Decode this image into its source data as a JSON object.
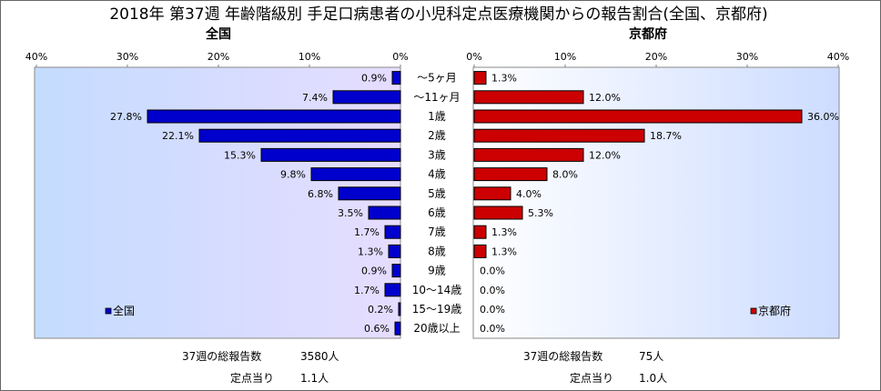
{
  "chart_data": {
    "type": "bar",
    "orientation": "horizontal",
    "title": "2018年 第37週 年齢階級別 手足口病患者の小児科定点医療機関からの報告割合(全国、京都府)",
    "categories": [
      "～5ヶ月",
      "～11ヶ月",
      "1歳",
      "2歳",
      "3歳",
      "4歳",
      "5歳",
      "6歳",
      "7歳",
      "8歳",
      "9歳",
      "10～14歳",
      "15～19歳",
      "20歳以上"
    ],
    "grid": false,
    "series": [
      {
        "name": "全国",
        "values": [
          0.9,
          7.4,
          27.8,
          22.1,
          15.3,
          9.8,
          6.8,
          3.5,
          1.7,
          1.3,
          0.9,
          1.7,
          0.2,
          0.6
        ],
        "labels": [
          "0.9%",
          "7.4%",
          "27.8%",
          "22.1%",
          "15.3%",
          "9.8%",
          "6.8%",
          "3.5%",
          "1.7%",
          "1.3%",
          "0.9%",
          "1.7%",
          "0.2%",
          "0.6%"
        ],
        "xlim": [
          0,
          40
        ],
        "x_ticks": [
          0,
          10,
          20,
          30,
          40
        ],
        "x_tick_labels": [
          "0%",
          "10%",
          "20%",
          "30%",
          "40%"
        ],
        "x_axis_reversed": true,
        "color": "#0000cc",
        "legend_position": "bottom-left"
      },
      {
        "name": "京都府",
        "values": [
          1.3,
          12.0,
          36.0,
          18.7,
          12.0,
          8.0,
          4.0,
          5.3,
          1.3,
          1.3,
          0.0,
          0.0,
          0.0,
          0.0
        ],
        "labels": [
          "1.3%",
          "12.0%",
          "36.0%",
          "18.7%",
          "12.0%",
          "8.0%",
          "4.0%",
          "5.3%",
          "1.3%",
          "1.3%",
          "0.0%",
          "0.0%",
          "0.0%",
          "0.0%"
        ],
        "xlim": [
          0,
          40
        ],
        "x_ticks": [
          0,
          10,
          20,
          30,
          40
        ],
        "x_tick_labels": [
          "0%",
          "10%",
          "20%",
          "30%",
          "40%"
        ],
        "x_axis_reversed": false,
        "color": "#cc0000",
        "legend_position": "bottom-right"
      }
    ]
  },
  "summary": [
    {
      "total_label": "37週の総報告数",
      "total_value": "3580人",
      "per_site_label": "定点当り",
      "per_site_value": "1.1人"
    },
    {
      "total_label": "37週の総報告数",
      "total_value": "75人",
      "per_site_label": "定点当り",
      "per_site_value": "1.0人"
    }
  ]
}
